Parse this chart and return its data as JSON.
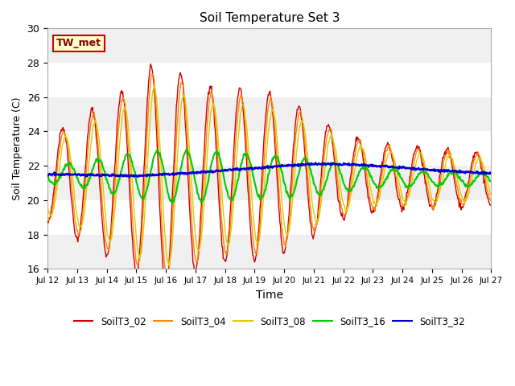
{
  "title": "Soil Temperature Set 3",
  "xlabel": "Time",
  "ylabel": "Soil Temperature (C)",
  "ylim": [
    16,
    30
  ],
  "xlim": [
    0,
    360
  ],
  "fig_bg_color": "#ffffff",
  "plot_bg_color": "#ffffff",
  "annotation_text": "TW_met",
  "annotation_bg": "#ffffcc",
  "annotation_border": "#cc0000",
  "series_colors": {
    "SoilT3_02": "#cc0000",
    "SoilT3_04": "#ff8800",
    "SoilT3_08": "#ddcc00",
    "SoilT3_16": "#00cc00",
    "SoilT3_32": "#0000cc"
  },
  "tick_labels": [
    "Jul 12",
    "Jul 13",
    "Jul 14",
    "Jul 15",
    "Jul 16",
    "Jul 17",
    "Jul 18",
    "Jul 19",
    "Jul 20",
    "Jul 21",
    "Jul 22",
    "Jul 23",
    "Jul 24",
    "Jul 25",
    "Jul 26",
    "Jul 27"
  ],
  "tick_positions": [
    0,
    24,
    48,
    72,
    96,
    120,
    144,
    168,
    192,
    216,
    240,
    264,
    288,
    312,
    336,
    360
  ],
  "yticks": [
    16,
    18,
    20,
    22,
    24,
    26,
    28,
    30
  ],
  "band_colors": [
    "#f0f0f0",
    "#ffffff"
  ],
  "n_hours": 721
}
